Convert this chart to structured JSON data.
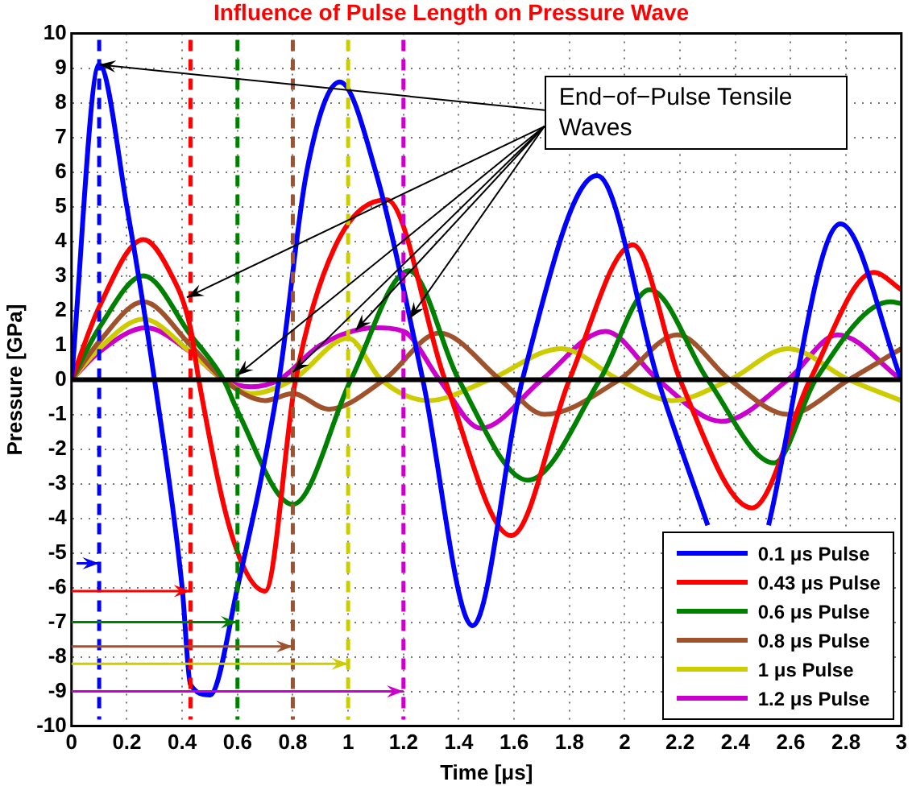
{
  "chart_data": {
    "type": "line",
    "title": "Influence of Pulse Length on Pressure Wave",
    "xlabel": "Time [μs]",
    "ylabel": "Pressure [GPa]",
    "xlim": [
      0,
      3
    ],
    "xticks": [
      0,
      0.2,
      0.4,
      0.6,
      0.8,
      1,
      1.2,
      1.4,
      1.6,
      1.8,
      2,
      2.2,
      2.4,
      2.6,
      2.8,
      3
    ],
    "ylim": [
      -10,
      10
    ],
    "yticks": [
      -10,
      -9,
      -8,
      -7,
      -6,
      -5,
      -4,
      -3,
      -2,
      -1,
      0,
      1,
      2,
      3,
      4,
      5,
      6,
      7,
      8,
      9,
      10
    ],
    "grid": true,
    "legend": "bottom right",
    "marker": "none",
    "line_style": "solid",
    "annotations": [
      {
        "text": "End−of−Pulse Tensile Waves",
        "x": 0.1,
        "y": 9.1
      }
    ],
    "ref_lines": [
      {
        "axis": "x",
        "value": 0.1,
        "color": "#0000ff",
        "line_style": "dashed"
      },
      {
        "axis": "x",
        "value": 0.43,
        "color": "#ff0000",
        "line_style": "dashed"
      },
      {
        "axis": "x",
        "value": 0.6,
        "color": "#008000",
        "line_style": "dashed"
      },
      {
        "axis": "x",
        "value": 0.8,
        "color": "#a0522d",
        "line_style": "dashed"
      },
      {
        "axis": "x",
        "value": 1,
        "color": "#cccc00",
        "line_style": "dashed"
      },
      {
        "axis": "x",
        "value": 1.2,
        "color": "#cc00cc",
        "line_style": "dashed"
      },
      {
        "axis": "y",
        "value": 0,
        "color": "#000000",
        "line_style": "solid"
      }
    ],
    "series": [
      {
        "name": "0.1 μs Pulse",
        "color": "#0000ff",
        "x": [
          0,
          0.1,
          0.2,
          0.3,
          0.4,
          0.43,
          0.5,
          0.6,
          0.75,
          0.85,
          0.97,
          1.1,
          1.27,
          1.45,
          1.63,
          1.9,
          2.12,
          2.3,
          2.41,
          2.52,
          2.78,
          3
        ],
        "values": [
          0,
          9.1,
          5,
          0,
          -6,
          -8.8,
          -9.1,
          -6,
          0,
          6,
          8.6,
          6,
          0,
          -7.1,
          0,
          5.9,
          0,
          -4.2,
          null,
          -4.2,
          4.5,
          0
        ]
      },
      {
        "name": "0.43 μs Pulse",
        "color": "#ff0000",
        "x": [
          0,
          0.1,
          0.26,
          0.35,
          0.43,
          0.46,
          0.58,
          0.7,
          0.81,
          0.95,
          1.14,
          1.35,
          1.59,
          1.8,
          2.03,
          2.2,
          2.46,
          2.67,
          2.9,
          3
        ],
        "values": [
          0,
          2.1,
          4.05,
          3.2,
          1.5,
          0,
          -4.5,
          -6.1,
          0,
          3.8,
          5.2,
          0,
          -4.5,
          0,
          3.9,
          0,
          -3.7,
          0,
          3.1,
          2.6
        ]
      },
      {
        "name": "0.6 μs Pulse",
        "color": "#008000",
        "x": [
          0,
          0.1,
          0.26,
          0.43,
          0.55,
          0.6,
          0.8,
          1.01,
          1.22,
          1.4,
          1.65,
          1.91,
          2.09,
          2.3,
          2.54,
          2.69,
          2.96,
          3
        ],
        "values": [
          0,
          1.5,
          3,
          1.3,
          0,
          -0.9,
          -3.6,
          0,
          3.15,
          0,
          -2.9,
          0,
          2.6,
          0,
          -2.4,
          0,
          2.25,
          2.2
        ]
      },
      {
        "name": "0.8 μs Pulse",
        "color": "#a0522d",
        "x": [
          0,
          0.1,
          0.26,
          0.43,
          0.55,
          0.7,
          0.8,
          0.93,
          1.13,
          1.33,
          1.55,
          1.71,
          1.98,
          2.19,
          2.38,
          2.59,
          2.81,
          3
        ],
        "values": [
          0,
          1.1,
          2.25,
          1,
          0,
          -0.6,
          -0.4,
          -0.85,
          0,
          1.35,
          0,
          -1,
          0,
          1.3,
          0,
          -1,
          0,
          0.9
        ]
      },
      {
        "name": "1 μs Pulse",
        "color": "#cccc00",
        "x": [
          0,
          0.1,
          0.26,
          0.43,
          0.55,
          0.65,
          0.8,
          1,
          1.12,
          1.29,
          1.51,
          1.77,
          1.98,
          2.17,
          2.38,
          2.59,
          2.81,
          3
        ],
        "values": [
          0,
          0.9,
          1.75,
          0.8,
          0,
          -0.4,
          0,
          1.2,
          0,
          -0.6,
          0,
          0.9,
          0,
          -0.6,
          0,
          0.9,
          0,
          -0.6
        ]
      },
      {
        "name": "1.2 μs Pulse",
        "color": "#cc00cc",
        "x": [
          0,
          0.1,
          0.27,
          0.43,
          0.55,
          0.65,
          0.75,
          0.9,
          1.1,
          1.2,
          1.33,
          1.48,
          1.7,
          1.93,
          2.12,
          2.35,
          2.59,
          2.77,
          3
        ],
        "values": [
          0,
          0.8,
          1.5,
          0.8,
          0,
          -0.2,
          0,
          1,
          1.5,
          1.4,
          0,
          -1.4,
          0,
          1.4,
          0,
          -1.2,
          0,
          1.3,
          0
        ]
      }
    ]
  }
}
